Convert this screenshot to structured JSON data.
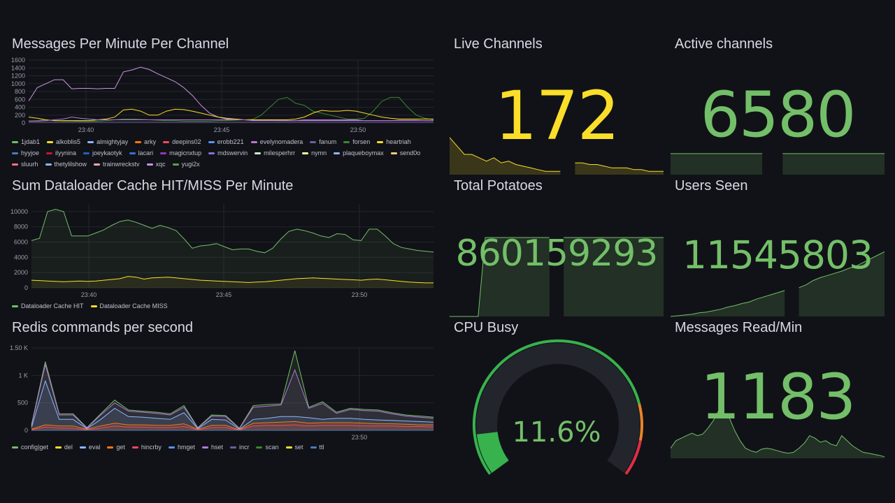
{
  "colors": {
    "background": "#111217",
    "green": "#73bf69",
    "yellow": "#fade2a",
    "grid": "#23252b",
    "gauge_track": "#22252b",
    "gauge_green": "#37b24d",
    "gauge_orange": "#e8832a",
    "gauge_red": "#e02f44"
  },
  "panels": {
    "messages_per_minute": {
      "title": "Messages Per Minute Per Channel"
    },
    "dataloader": {
      "title": "Sum Dataloader Cache HIT/MISS Per Minute"
    },
    "redis": {
      "title": "Redis commands per second"
    },
    "live_channels": {
      "title": "Live Channels",
      "value": "172"
    },
    "active_channels": {
      "title": "Active channels",
      "value": "6580"
    },
    "total_potatoes": {
      "title": "Total Potatoes",
      "value": "860159293"
    },
    "users_seen": {
      "title": "Users Seen",
      "value": "11545803"
    },
    "cpu_busy": {
      "title": "CPU Busy",
      "value": "11.6%",
      "percent": 11.6
    },
    "messages_read": {
      "title": "Messages Read/Min",
      "value": "1183"
    }
  },
  "chart_data": [
    {
      "type": "line",
      "title": "Messages Per Minute Per Channel",
      "x_ticks": [
        "23:40",
        "23:45",
        "23:50"
      ],
      "y_ticks": [
        "0",
        "200",
        "400",
        "600",
        "800",
        "1000",
        "1200",
        "1400",
        "1600"
      ],
      "ylim": [
        0,
        1600
      ],
      "grid": true,
      "legend_position": "bottom",
      "legend": [
        "1jdab1",
        "alkoblis5",
        "almightyjay",
        "arky",
        "deepins02",
        "erobb221",
        "evelynomadera",
        "fanum",
        "forsen",
        "heartriah",
        "hyyjoe",
        "ilyynina",
        "joeykaotyk",
        "lacari",
        "magicnxtup",
        "mdswervin",
        "milesperhrr",
        "nymn",
        "plaqueboymax",
        "send0o",
        "sluurh",
        "thetylilshow",
        "trainwreckstv",
        "xqc",
        "yugi2x"
      ],
      "legend_colors": [
        "#73bf69",
        "#fade2a",
        "#8ab8ff",
        "#ff780a",
        "#f2495c",
        "#5794f2",
        "#b877d9",
        "#705da0",
        "#37872d",
        "#fade2a",
        "#447ebc",
        "#c4162a",
        "#1f60c4",
        "#3274d9",
        "#8f3bb8",
        "#8e6fd8",
        "#c8f2c2",
        "#fff899",
        "#8ab8ff",
        "#ffcb7d",
        "#ff7383",
        "#8ab8ff",
        "#ffa6b0",
        "#ca95e5",
        "#56a64b"
      ],
      "series": [
        {
          "name": "xqc",
          "values": [
            560,
            900,
            1000,
            1100,
            1100,
            870,
            880,
            880,
            870,
            880,
            880,
            1300,
            1350,
            1420,
            1360,
            1250,
            1150,
            1050,
            900,
            700,
            450,
            250,
            150,
            100,
            80,
            80,
            70,
            70,
            70,
            60,
            60,
            60,
            60,
            60,
            60,
            60,
            60,
            60,
            60,
            60,
            60,
            60,
            60,
            70,
            70,
            70,
            60,
            60
          ]
        },
        {
          "name": "forsen",
          "values": [
            50,
            60,
            80,
            60,
            50,
            50,
            40,
            40,
            50,
            60,
            80,
            100,
            100,
            90,
            80,
            70,
            60,
            60,
            50,
            50,
            50,
            50,
            60,
            60,
            70,
            80,
            90,
            200,
            400,
            600,
            650,
            500,
            450,
            300,
            250,
            200,
            150,
            100,
            100,
            120,
            300,
            550,
            650,
            650,
            400,
            200,
            120,
            80
          ]
        },
        {
          "name": "heartriah",
          "values": [
            150,
            120,
            80,
            60,
            60,
            60,
            60,
            60,
            80,
            100,
            150,
            330,
            350,
            300,
            200,
            200,
            300,
            350,
            340,
            300,
            250,
            200,
            150,
            120,
            100,
            80,
            80,
            80,
            80,
            80,
            80,
            100,
            150,
            250,
            320,
            300,
            300,
            320,
            300,
            250,
            200,
            150,
            120,
            100,
            100,
            100,
            100,
            100
          ]
        },
        {
          "name": "evelynomadera",
          "values": [
            50,
            50,
            60,
            80,
            100,
            150,
            120,
            100,
            80,
            80,
            80,
            80,
            80,
            80,
            80,
            80,
            80,
            80,
            80,
            80,
            80,
            80,
            80,
            80,
            80,
            80,
            60,
            60,
            60,
            60,
            60,
            60,
            80,
            80,
            80,
            80,
            80,
            80,
            80,
            60,
            60,
            60,
            60,
            60,
            60,
            60,
            60,
            60
          ]
        },
        {
          "name": "fanum",
          "values": [
            20,
            20,
            20,
            20,
            20,
            20,
            20,
            20,
            20,
            20,
            20,
            20,
            20,
            20,
            20,
            20,
            20,
            20,
            20,
            20,
            20,
            20,
            20,
            20,
            20,
            20,
            20,
            20,
            20,
            20,
            20,
            20,
            20,
            20,
            20,
            20,
            20,
            20,
            20,
            20,
            20,
            20,
            20,
            20,
            20,
            20,
            20,
            20
          ]
        }
      ]
    },
    {
      "type": "area",
      "title": "Sum Dataloader Cache HIT/MISS Per Minute",
      "x_ticks": [
        "23:40",
        "23:45",
        "23:50"
      ],
      "y_ticks": [
        "0",
        "2000",
        "4000",
        "6000",
        "8000",
        "10000"
      ],
      "ylim": [
        0,
        11000
      ],
      "grid": true,
      "legend_position": "bottom",
      "series": [
        {
          "name": "Dataloader Cache HIT",
          "color": "#73bf69",
          "values": [
            6200,
            6500,
            10000,
            10300,
            10000,
            6800,
            6800,
            6800,
            7200,
            7600,
            8200,
            8700,
            8900,
            8600,
            8200,
            7800,
            8200,
            7900,
            7500,
            6400,
            5200,
            5500,
            5600,
            5800,
            5400,
            5000,
            5100,
            5100,
            4800,
            4600,
            5200,
            6400,
            7400,
            7700,
            7500,
            7200,
            6800,
            6600,
            7100,
            7000,
            6300,
            6200,
            7700,
            7700,
            6800,
            5800,
            5300,
            5100,
            4900,
            4800,
            4700
          ]
        },
        {
          "name": "Dataloader Cache MISS",
          "color": "#fade2a",
          "values": [
            1000,
            950,
            900,
            850,
            800,
            850,
            900,
            850,
            900,
            1000,
            1100,
            1200,
            1500,
            1400,
            1150,
            1300,
            1350,
            1400,
            1300,
            1200,
            1100,
            1000,
            950,
            900,
            850,
            800,
            750,
            700,
            750,
            800,
            900,
            1000,
            1100,
            1200,
            1250,
            1300,
            1250,
            1200,
            1150,
            1100,
            1050,
            1000,
            1100,
            1150,
            1050,
            950,
            850,
            750,
            700,
            650,
            650
          ]
        }
      ]
    },
    {
      "type": "area",
      "title": "Redis commands per second",
      "x_ticks": [
        "23:50"
      ],
      "y_ticks": [
        "0",
        "500",
        "1 K",
        "1.50 K"
      ],
      "ylim": [
        0,
        1500
      ],
      "grid": true,
      "legend_position": "bottom",
      "series": [
        {
          "name": "config|get",
          "color": "#73bf69",
          "values": [
            100,
            1250,
            300,
            300,
            50,
            300,
            550,
            370,
            350,
            330,
            300,
            450,
            50,
            280,
            270,
            40,
            450,
            470,
            480,
            1450,
            420,
            520,
            330,
            400,
            380,
            370,
            320,
            280,
            260,
            240
          ]
        },
        {
          "name": "del",
          "color": "#fade2a",
          "values": [
            0,
            0,
            0,
            0,
            0,
            0,
            0,
            0,
            0,
            0,
            0,
            0,
            0,
            0,
            0,
            0,
            0,
            0,
            0,
            0,
            0,
            0,
            0,
            0,
            0,
            0,
            0,
            0,
            0,
            0
          ]
        },
        {
          "name": "eval",
          "color": "#8ab8ff",
          "values": [
            50,
            900,
            200,
            200,
            30,
            200,
            400,
            250,
            240,
            220,
            200,
            320,
            30,
            200,
            190,
            20,
            200,
            220,
            250,
            250,
            230,
            200,
            220,
            220,
            200,
            190,
            180,
            170,
            160,
            150
          ]
        },
        {
          "name": "get",
          "color": "#ff780a",
          "values": [
            20,
            100,
            80,
            80,
            20,
            80,
            130,
            100,
            100,
            90,
            90,
            120,
            20,
            90,
            90,
            10,
            130,
            140,
            150,
            160,
            130,
            140,
            140,
            140,
            130,
            120,
            120,
            110,
            100,
            100
          ]
        },
        {
          "name": "hincrby",
          "color": "#f2495c",
          "values": [
            10,
            60,
            40,
            40,
            10,
            40,
            80,
            60,
            60,
            50,
            50,
            70,
            10,
            50,
            50,
            5,
            80,
            90,
            90,
            100,
            80,
            90,
            90,
            90,
            80,
            80,
            80,
            70,
            70,
            60
          ]
        },
        {
          "name": "hmget",
          "color": "#5794f2",
          "values": [
            0,
            0,
            0,
            0,
            0,
            0,
            0,
            0,
            0,
            0,
            0,
            0,
            0,
            0,
            0,
            0,
            0,
            0,
            0,
            0,
            0,
            0,
            0,
            0,
            0,
            0,
            0,
            0,
            0,
            0
          ]
        },
        {
          "name": "hset",
          "color": "#b877d9",
          "values": [
            80,
            1200,
            280,
            280,
            40,
            280,
            500,
            350,
            330,
            310,
            280,
            420,
            40,
            260,
            250,
            30,
            420,
            440,
            460,
            1100,
            400,
            490,
            310,
            380,
            360,
            350,
            300,
            260,
            240,
            220
          ]
        },
        {
          "name": "incr",
          "color": "#705da0",
          "values": [
            0,
            0,
            0,
            0,
            0,
            0,
            0,
            0,
            0,
            0,
            0,
            0,
            0,
            0,
            0,
            0,
            0,
            0,
            0,
            0,
            0,
            0,
            0,
            0,
            0,
            0,
            0,
            0,
            0,
            0
          ]
        },
        {
          "name": "scan",
          "color": "#37872d",
          "values": [
            0,
            0,
            0,
            0,
            0,
            0,
            0,
            0,
            0,
            0,
            0,
            0,
            0,
            0,
            0,
            0,
            0,
            0,
            0,
            0,
            0,
            0,
            0,
            0,
            0,
            0,
            0,
            0,
            0,
            0
          ]
        },
        {
          "name": "set",
          "color": "#fade2a",
          "values": [
            0,
            0,
            0,
            0,
            0,
            0,
            0,
            0,
            0,
            0,
            0,
            0,
            0,
            0,
            0,
            0,
            0,
            0,
            0,
            0,
            0,
            0,
            0,
            0,
            0,
            0,
            0,
            0,
            0,
            0
          ]
        },
        {
          "name": "ttl",
          "color": "#447ebc",
          "values": [
            0,
            0,
            0,
            0,
            0,
            0,
            0,
            0,
            0,
            0,
            0,
            0,
            0,
            0,
            0,
            0,
            0,
            0,
            0,
            0,
            0,
            0,
            0,
            0,
            0,
            0,
            0,
            0,
            0,
            0
          ]
        }
      ]
    },
    {
      "type": "area",
      "title": "Live Channels",
      "color": "#fade2a",
      "values": [
        190,
        185,
        180,
        180,
        178,
        176,
        178,
        175,
        176,
        174,
        173,
        172,
        171,
        170,
        170,
        170,
        null,
        175,
        175,
        174,
        174,
        173,
        172,
        172,
        172,
        171,
        171,
        170,
        170,
        170
      ]
    },
    {
      "type": "area",
      "title": "Active channels",
      "color": "#73bf69",
      "values": [
        6580,
        6580,
        6580,
        6580,
        6580,
        6580,
        6580,
        6580,
        6580,
        6580,
        null,
        6580,
        6580,
        6580,
        6580,
        6580,
        6580,
        6580,
        6580,
        6580,
        6580,
        6580
      ]
    },
    {
      "type": "area",
      "title": "Total Potatoes",
      "color": "#73bf69",
      "values": [
        0,
        0,
        0,
        0,
        0,
        1,
        1,
        1,
        1,
        1,
        1,
        1,
        1,
        1,
        1,
        null,
        1,
        1,
        1,
        1,
        1,
        1,
        1,
        1,
        1,
        1,
        1,
        1,
        1,
        1,
        1
      ]
    },
    {
      "type": "area",
      "title": "Users Seen",
      "color": "#73bf69",
      "values": [
        0,
        1,
        2,
        3,
        5,
        6,
        8,
        10,
        13,
        15,
        18,
        20,
        24,
        27,
        30,
        33,
        36,
        null,
        40,
        44,
        50,
        54,
        57,
        60,
        63,
        67,
        70,
        75,
        80,
        85,
        90
      ]
    },
    {
      "type": "area",
      "title": "Messages Read/Min",
      "color": "#73bf69",
      "values": [
        20,
        35,
        40,
        45,
        50,
        45,
        48,
        60,
        75,
        95,
        85,
        80,
        55,
        35,
        20,
        15,
        12,
        18,
        20,
        18,
        15,
        12,
        10,
        12,
        20,
        30,
        45,
        40,
        32,
        35,
        28,
        25,
        45,
        35,
        25,
        18,
        12,
        10,
        8,
        6,
        3
      ]
    }
  ],
  "legends": {
    "dataloader": [
      "Dataloader Cache HIT",
      "Dataloader Cache MISS"
    ],
    "dataloader_colors": [
      "#73bf69",
      "#fade2a"
    ],
    "redis": [
      "config|get",
      "del",
      "eval",
      "get",
      "hincrby",
      "hmget",
      "hset",
      "incr",
      "scan",
      "set",
      "ttl"
    ],
    "redis_colors": [
      "#73bf69",
      "#fade2a",
      "#8ab8ff",
      "#ff780a",
      "#f2495c",
      "#5794f2",
      "#b877d9",
      "#705da0",
      "#37872d",
      "#fade2a",
      "#447ebc"
    ]
  }
}
